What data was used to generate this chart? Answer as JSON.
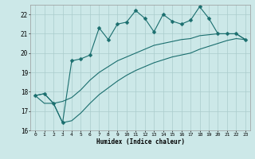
{
  "xlabel": "Humidex (Indice chaleur)",
  "background_color": "#cce8e8",
  "line_color": "#1a6e6e",
  "grid_color": "#aacccc",
  "x_values": [
    0,
    1,
    2,
    3,
    4,
    5,
    6,
    7,
    8,
    9,
    10,
    11,
    12,
    13,
    14,
    15,
    16,
    17,
    18,
    19,
    20,
    21,
    22,
    23
  ],
  "line1_y": [
    17.8,
    17.9,
    17.4,
    16.4,
    19.6,
    19.7,
    19.9,
    21.3,
    20.7,
    21.5,
    21.6,
    22.2,
    21.8,
    21.1,
    22.0,
    21.65,
    21.5,
    21.7,
    22.4,
    21.8,
    21.0,
    21.0,
    21.0,
    20.7
  ],
  "line2_y": [
    17.8,
    17.9,
    17.4,
    17.5,
    17.7,
    18.1,
    18.6,
    19.0,
    19.3,
    19.6,
    19.8,
    20.0,
    20.2,
    20.4,
    20.5,
    20.6,
    20.7,
    20.75,
    20.9,
    20.95,
    21.0,
    21.0,
    21.0,
    20.7
  ],
  "line3_y": [
    17.8,
    17.4,
    17.4,
    16.4,
    16.5,
    16.9,
    17.4,
    17.85,
    18.2,
    18.55,
    18.85,
    19.1,
    19.3,
    19.5,
    19.65,
    19.8,
    19.9,
    20.0,
    20.2,
    20.35,
    20.5,
    20.65,
    20.75,
    20.7
  ],
  "ylim": [
    16,
    22.5
  ],
  "xlim": [
    -0.5,
    23.5
  ],
  "yticks": [
    16,
    17,
    18,
    19,
    20,
    21,
    22
  ],
  "xticks": [
    0,
    1,
    2,
    3,
    4,
    5,
    6,
    7,
    8,
    9,
    10,
    11,
    12,
    13,
    14,
    15,
    16,
    17,
    18,
    19,
    20,
    21,
    22,
    23
  ],
  "marker": "D",
  "markersize": 2.5,
  "linewidth": 0.8
}
